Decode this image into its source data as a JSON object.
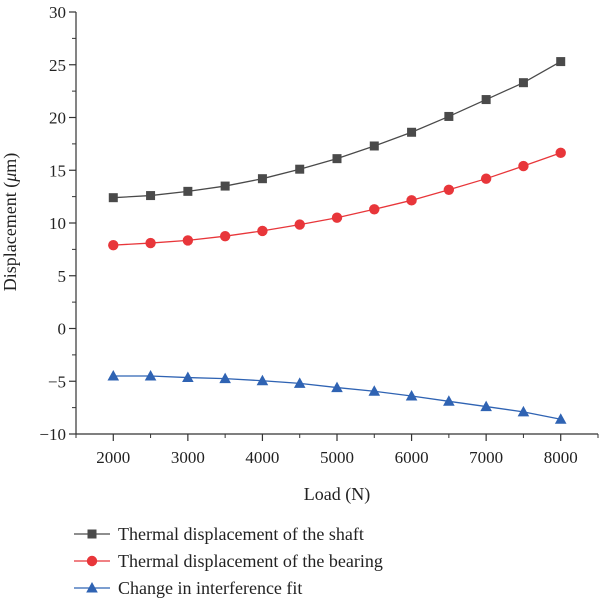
{
  "chart_data": {
    "type": "line",
    "xlabel": "Load (N)",
    "ylabel": "Displacement (μm)",
    "ylabel_parts": [
      "Displacement (",
      "μ",
      "m)"
    ],
    "xlim": [
      1500,
      8500
    ],
    "ylim": [
      -10,
      30
    ],
    "x_ticks": [
      2000,
      3000,
      4000,
      5000,
      6000,
      7000,
      8000
    ],
    "x_tick_labels": [
      "2000",
      "3000",
      "4000",
      "5000",
      "6000",
      "7000",
      "8000"
    ],
    "y_ticks": [
      -10,
      -5,
      0,
      5,
      10,
      15,
      20,
      25,
      30
    ],
    "y_tick_labels": [
      "−10",
      "−5",
      "0",
      "5",
      "10",
      "15",
      "20",
      "25",
      "30"
    ],
    "x": [
      2000,
      2500,
      3000,
      3500,
      4000,
      4500,
      5000,
      5500,
      6000,
      6500,
      7000,
      7500,
      8000
    ],
    "legend_position": "bottom",
    "series": [
      {
        "name": "Thermal displacement of the shaft",
        "marker": "square",
        "color": "#4a4a4a",
        "values": [
          12.4,
          12.6,
          13.0,
          13.5,
          14.2,
          15.1,
          16.1,
          17.3,
          18.6,
          20.1,
          21.7,
          23.3,
          25.3
        ]
      },
      {
        "name": "Thermal displacement of the bearing",
        "marker": "circle",
        "color": "#e8363a",
        "values": [
          7.9,
          8.1,
          8.35,
          8.75,
          9.25,
          9.85,
          10.5,
          11.3,
          12.15,
          13.15,
          14.2,
          15.4,
          16.65
        ]
      },
      {
        "name": "Change in interference fit",
        "marker": "triangle",
        "color": "#2f63b3",
        "values": [
          -4.5,
          -4.5,
          -4.65,
          -4.75,
          -4.95,
          -5.2,
          -5.6,
          -5.95,
          -6.4,
          -6.9,
          -7.4,
          -7.9,
          -8.6
        ]
      }
    ]
  }
}
